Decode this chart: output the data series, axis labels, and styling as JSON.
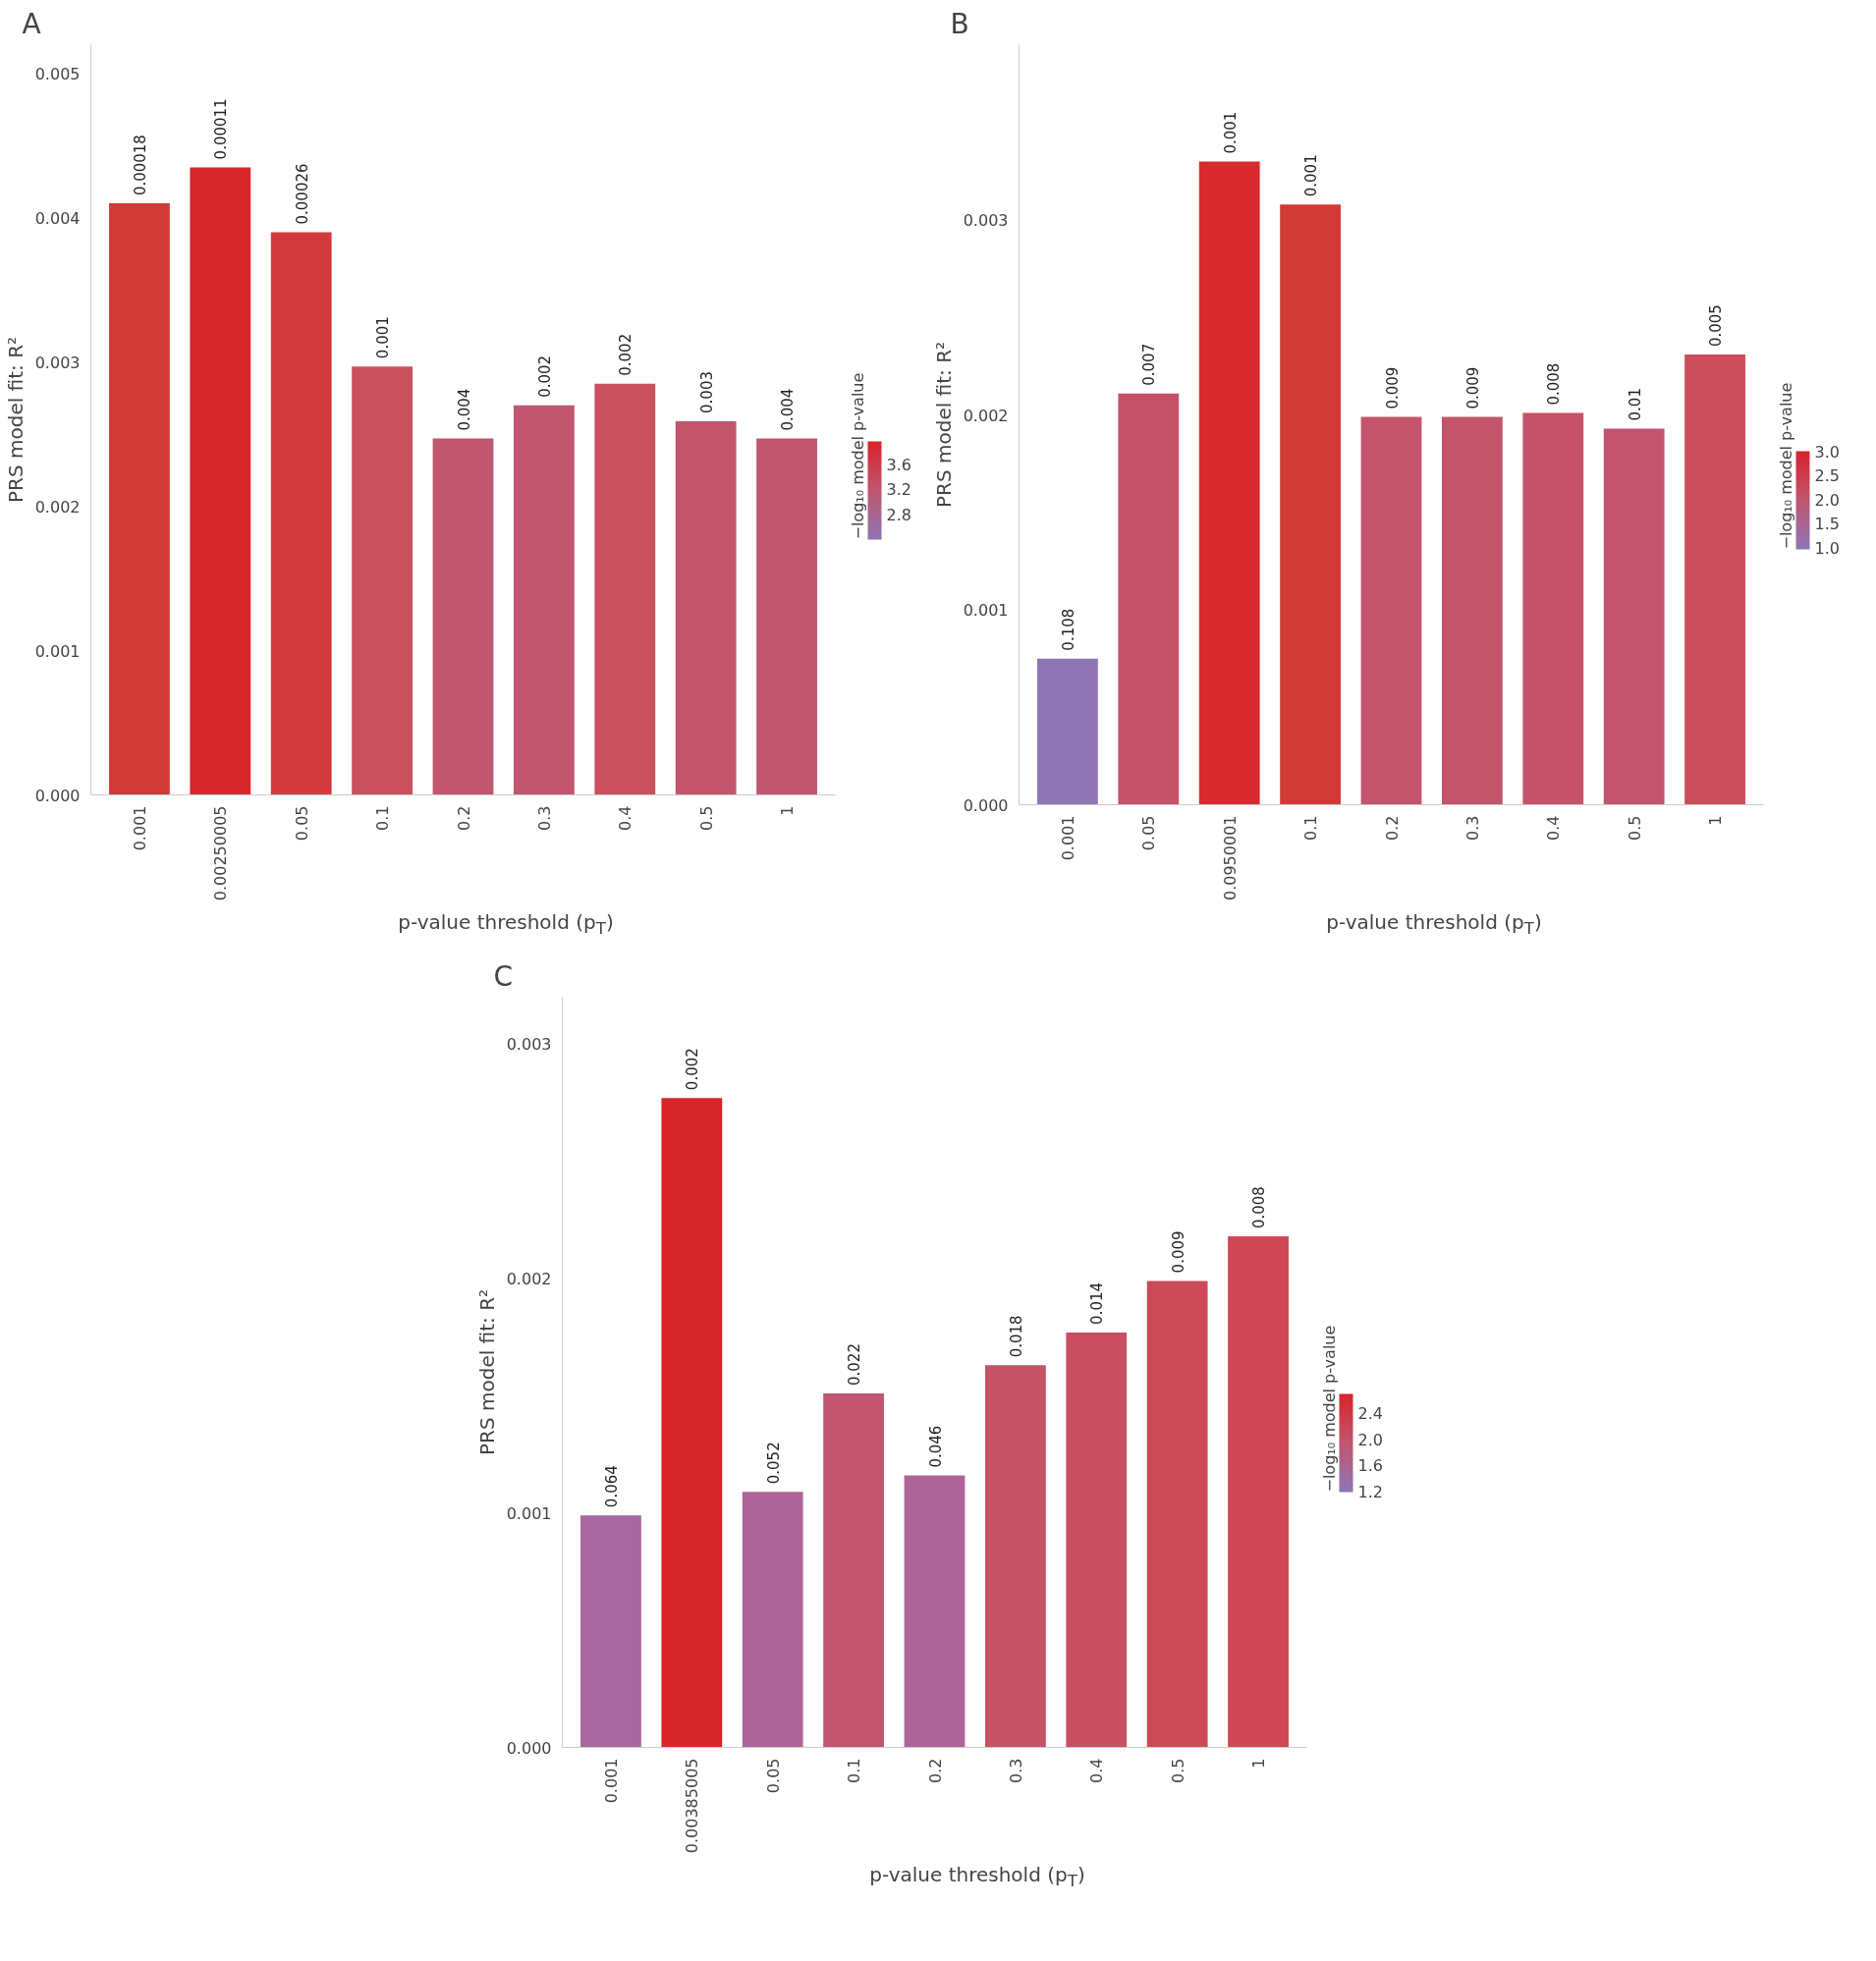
{
  "chart_data": [
    {
      "type": "bar",
      "title": "A",
      "xlabel": "p-value threshold (p$_{T}$)",
      "ylabel": "PRS model fit: R²",
      "clabel": "−log₁₀ model p-value",
      "categories": [
        "0.001",
        "0.00250005",
        "0.05",
        "0.1",
        "0.2",
        "0.3",
        "0.4",
        "0.5",
        "1"
      ],
      "values": [
        0.0041,
        0.00435,
        0.0039,
        0.00297,
        0.00247,
        0.0027,
        0.00285,
        0.00259,
        0.00247
      ],
      "colors": [
        "#d23a35",
        "#d7262c",
        "#d13b3e",
        "#c9505f",
        "#c0566f",
        "#c1566e",
        "#c9505f",
        "#c2556c",
        "#c0566f"
      ],
      "annotations": [
        {
          "text": "0.00018",
          "x": "0.001",
          "y": 0.0041
        },
        {
          "text": "0.00011",
          "x": "0.00250005",
          "y": 0.00435
        },
        {
          "text": "0.00026",
          "x": "0.05",
          "y": 0.0039
        },
        {
          "text": "0.001",
          "x": "0.1",
          "y": 0.00297
        },
        {
          "text": "0.004",
          "x": "0.2",
          "y": 0.00247
        },
        {
          "text": "0.002",
          "x": "0.3",
          "y": 0.0027
        },
        {
          "text": "0.002",
          "x": "0.4",
          "y": 0.00285
        },
        {
          "text": "0.003",
          "x": "0.5",
          "y": 0.00259
        },
        {
          "text": "0.004",
          "x": "1",
          "y": 0.00247
        }
      ],
      "ylim": [
        0,
        0.0052
      ],
      "yticks": [
        {
          "value": 0,
          "label": "0.000"
        },
        {
          "value": 0.001,
          "label": "0.001"
        },
        {
          "value": 0.002,
          "label": "0.002"
        },
        {
          "value": 0.003,
          "label": "0.003"
        },
        {
          "value": 0.004,
          "label": "0.004"
        },
        {
          "value": 0.005,
          "label": "0.005"
        }
      ],
      "clim": [
        2.4,
        3.96
      ],
      "cticks": [
        2.8,
        3.2,
        3.6
      ],
      "grid": false
    },
    {
      "type": "bar",
      "title": "B",
      "xlabel": "p-value threshold (p$_{T}$)",
      "ylabel": "PRS model fit: R²",
      "clabel": "−log₁₀ model p-value",
      "categories": [
        "0.001",
        "0.05",
        "0.0950001",
        "0.1",
        "0.2",
        "0.3",
        "0.4",
        "0.5",
        "1"
      ],
      "values": [
        0.00075,
        0.00211,
        0.0033,
        0.00308,
        0.00199,
        0.00199,
        0.00201,
        0.00193,
        0.00231
      ],
      "colors": [
        "#8e76b6",
        "#c55168",
        "#d92a2f",
        "#d23a37",
        "#c4546c",
        "#c4546c",
        "#c4536a",
        "#c2556d",
        "#cb4c5a"
      ],
      "annotations": [
        {
          "text": "0.108",
          "x": "0.001",
          "y": 0.00075
        },
        {
          "text": "0.007",
          "x": "0.05",
          "y": 0.00211
        },
        {
          "text": "0.001",
          "x": "0.0950001",
          "y": 0.0033
        },
        {
          "text": "0.001",
          "x": "0.1",
          "y": 0.00308
        },
        {
          "text": "0.009",
          "x": "0.2",
          "y": 0.00199
        },
        {
          "text": "0.009",
          "x": "0.3",
          "y": 0.00199
        },
        {
          "text": "0.008",
          "x": "0.4",
          "y": 0.00201
        },
        {
          "text": "0.01",
          "x": "0.5",
          "y": 0.00193
        },
        {
          "text": "0.005",
          "x": "1",
          "y": 0.00231
        }
      ],
      "ylim": [
        0,
        0.0039
      ],
      "yticks": [
        {
          "value": 0,
          "label": "0.000"
        },
        {
          "value": 0.001,
          "label": "0.001"
        },
        {
          "value": 0.002,
          "label": "0.002"
        },
        {
          "value": 0.003,
          "label": "0.003"
        }
      ],
      "clim": [
        0.97,
        3.0
      ],
      "cticks": [
        {
          "value": 1,
          "label": "1.0"
        },
        {
          "value": 1.5,
          "label": "1.5"
        },
        {
          "value": 2,
          "label": "2.0"
        },
        {
          "value": 2.5,
          "label": "2.5"
        },
        {
          "value": 3,
          "label": "3.0"
        }
      ],
      "grid": false
    },
    {
      "type": "bar",
      "title": "C",
      "xlabel": "p-value threshold (p$_{T}$)",
      "ylabel": "PRS model fit: R²",
      "clabel": "−log₁₀ model p-value",
      "categories": [
        "0.001",
        "0.00385005",
        "0.05",
        "0.1",
        "0.2",
        "0.3",
        "0.4",
        "0.5",
        "1"
      ],
      "values": [
        0.00099,
        0.00277,
        0.00109,
        0.00151,
        0.00116,
        0.00163,
        0.00177,
        0.00199,
        0.00218
      ],
      "colors": [
        "#a867a0",
        "#d6252b",
        "#ad6597",
        "#c25470",
        "#ad6597",
        "#c65265",
        "#c84f62",
        "#cc4a58",
        "#cf4654"
      ],
      "annotations": [
        {
          "text": "0.064",
          "x": "0.001",
          "y": 0.00099
        },
        {
          "text": "0.002",
          "x": "0.00385005",
          "y": 0.00277
        },
        {
          "text": "0.052",
          "x": "0.05",
          "y": 0.00109
        },
        {
          "text": "0.022",
          "x": "0.1",
          "y": 0.00151
        },
        {
          "text": "0.046",
          "x": "0.2",
          "y": 0.00116
        },
        {
          "text": "0.018",
          "x": "0.3",
          "y": 0.00163
        },
        {
          "text": "0.014",
          "x": "0.4",
          "y": 0.00177
        },
        {
          "text": "0.009",
          "x": "0.5",
          "y": 0.00199
        },
        {
          "text": "0.008",
          "x": "1",
          "y": 0.00218
        }
      ],
      "ylim": [
        0,
        0.0032
      ],
      "yticks": [
        {
          "value": 0,
          "label": "0.000"
        },
        {
          "value": 0.001,
          "label": "0.001"
        },
        {
          "value": 0.002,
          "label": "0.002"
        },
        {
          "value": 0.003,
          "label": "0.003"
        }
      ],
      "clim": [
        1.19,
        2.7
      ],
      "cticks": [
        {
          "value": 1.2,
          "label": "1.2"
        },
        {
          "value": 1.6,
          "label": "1.6"
        },
        {
          "value": 2.0,
          "label": "2.0"
        },
        {
          "value": 2.4,
          "label": "2.4"
        }
      ],
      "grid": false
    }
  ]
}
